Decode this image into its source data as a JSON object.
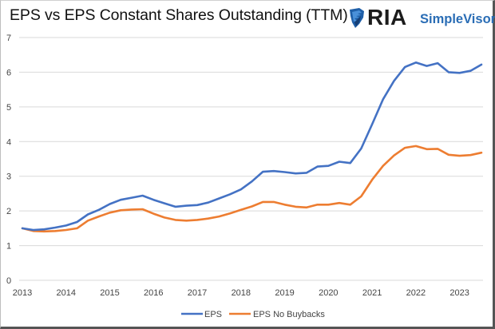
{
  "header": {
    "title": "EPS vs EPS Constant Shares Outstanding (TTM)",
    "logo": {
      "brand": "RIA",
      "product": "SimpleVisor",
      "icon": "eagle-shield-icon"
    }
  },
  "chart_data": {
    "type": "line",
    "title": "EPS vs EPS Constant Shares Outstanding (TTM)",
    "xlabel": "",
    "ylabel": "",
    "xlim": [
      2013,
      2023.5
    ],
    "ylim": [
      0,
      7
    ],
    "grid": true,
    "legend_position": "bottom",
    "x_ticks": [
      "2013",
      "2014",
      "2015",
      "2016",
      "2017",
      "2018",
      "2019",
      "2020",
      "2021",
      "2022",
      "2023"
    ],
    "y_ticks": [
      "0",
      "1",
      "2",
      "3",
      "4",
      "5",
      "6",
      "7"
    ],
    "x": [
      2013.0,
      2013.25,
      2013.5,
      2013.75,
      2014.0,
      2014.25,
      2014.5,
      2014.75,
      2015.0,
      2015.25,
      2015.5,
      2015.75,
      2016.0,
      2016.25,
      2016.5,
      2016.75,
      2017.0,
      2017.25,
      2017.5,
      2017.75,
      2018.0,
      2018.25,
      2018.5,
      2018.75,
      2019.0,
      2019.25,
      2019.5,
      2019.75,
      2020.0,
      2020.25,
      2020.5,
      2020.75,
      2021.0,
      2021.25,
      2021.5,
      2021.75,
      2022.0,
      2022.25,
      2022.5,
      2022.75,
      2023.0,
      2023.25,
      2023.5
    ],
    "series": [
      {
        "name": "EPS",
        "color": "#4472C4",
        "values": [
          1.5,
          1.45,
          1.47,
          1.52,
          1.58,
          1.68,
          1.9,
          2.03,
          2.2,
          2.32,
          2.38,
          2.44,
          2.32,
          2.22,
          2.12,
          2.15,
          2.17,
          2.24,
          2.36,
          2.48,
          2.62,
          2.85,
          3.13,
          3.15,
          3.12,
          3.08,
          3.1,
          3.28,
          3.3,
          3.42,
          3.38,
          3.8,
          4.5,
          5.22,
          5.75,
          6.15,
          6.28,
          6.18,
          6.26,
          6.0,
          5.98,
          6.04,
          6.22
        ]
      },
      {
        "name": "EPS No Buybacks",
        "color": "#ED7D31",
        "values": [
          1.5,
          1.42,
          1.41,
          1.42,
          1.45,
          1.5,
          1.72,
          1.84,
          1.95,
          2.02,
          2.04,
          2.05,
          1.92,
          1.81,
          1.74,
          1.72,
          1.74,
          1.78,
          1.84,
          1.93,
          2.03,
          2.13,
          2.26,
          2.26,
          2.18,
          2.12,
          2.1,
          2.18,
          2.18,
          2.23,
          2.18,
          2.42,
          2.9,
          3.3,
          3.6,
          3.82,
          3.87,
          3.78,
          3.79,
          3.62,
          3.59,
          3.61,
          3.68
        ]
      }
    ]
  },
  "colors": {
    "grid": "#d9d9d9",
    "logo_blue": "#2a6db5"
  }
}
